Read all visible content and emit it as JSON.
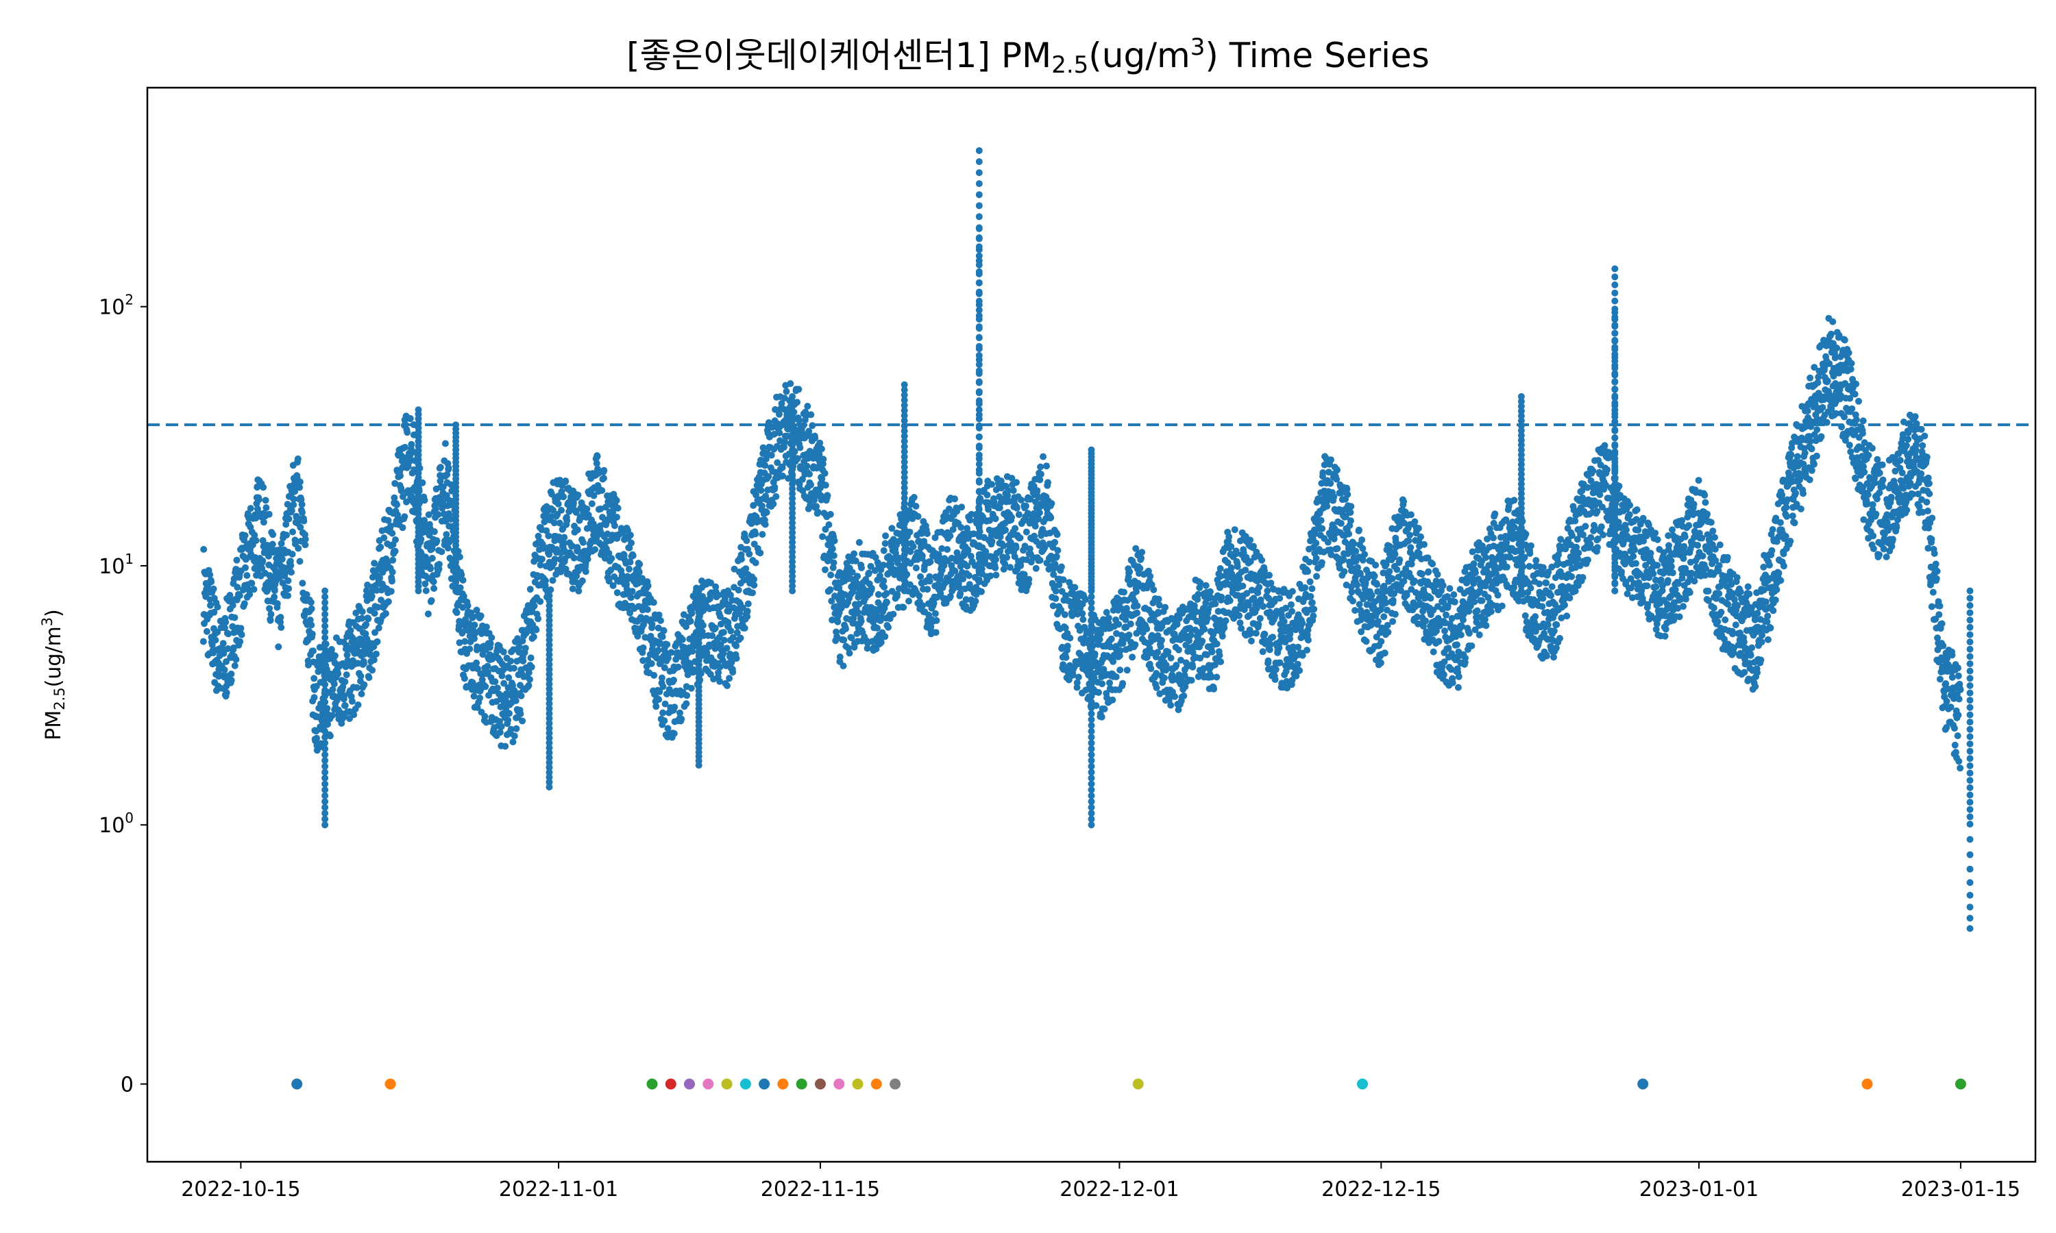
{
  "chart_data": {
    "type": "scatter",
    "title": {
      "prefix": "[좋은이웃데이케어센터1] PM",
      "sub": "2.5",
      "mid": "(ug/m",
      "sup": "3",
      "suffix": ") Time Series"
    },
    "ylabel": {
      "prefix": "PM",
      "sub": "2.5",
      "mid": "(ug/m",
      "sup": "3",
      "suffix": ")"
    },
    "xlabel": "",
    "xlim": [
      "2022-10-10",
      "2023-01-19"
    ],
    "x_ticks": [
      "2022-10-15",
      "2022-11-01",
      "2022-11-15",
      "2022-12-01",
      "2022-12-15",
      "2023-01-01",
      "2023-01-15"
    ],
    "y_scale": "symlog",
    "ylim": [
      -0.3,
      700
    ],
    "y_ticks": [
      {
        "value": 0,
        "base": "0",
        "exp": ""
      },
      {
        "value": 1,
        "base": "10",
        "exp": "0"
      },
      {
        "value": 10,
        "base": "10",
        "exp": "1"
      },
      {
        "value": 100,
        "base": "10",
        "exp": "2"
      }
    ],
    "threshold": {
      "value": 35,
      "style": "dashed",
      "color": "#1f77b4"
    },
    "series_color": "#1f77b4",
    "main_series": [
      [
        "2022-10-13",
        8
      ],
      [
        "2022-10-14",
        4
      ],
      [
        "2022-10-15",
        8
      ],
      [
        "2022-10-16",
        15
      ],
      [
        "2022-10-17",
        7
      ],
      [
        "2022-10-18",
        20
      ],
      [
        "2022-10-19",
        3
      ],
      [
        "2022-10-20",
        3.5
      ],
      [
        "2022-10-21",
        4
      ],
      [
        "2022-10-22",
        6
      ],
      [
        "2022-10-23",
        12
      ],
      [
        "2022-10-24",
        30
      ],
      [
        "2022-10-25",
        10
      ],
      [
        "2022-10-26",
        20
      ],
      [
        "2022-10-27",
        5
      ],
      [
        "2022-10-28",
        4
      ],
      [
        "2022-10-29",
        3
      ],
      [
        "2022-10-30",
        3.5
      ],
      [
        "2022-10-31",
        10
      ],
      [
        "2022-11-01",
        15
      ],
      [
        "2022-11-02",
        12
      ],
      [
        "2022-11-03",
        18
      ],
      [
        "2022-11-04",
        12
      ],
      [
        "2022-11-05",
        8
      ],
      [
        "2022-11-06",
        5
      ],
      [
        "2022-11-07",
        3
      ],
      [
        "2022-11-08",
        5
      ],
      [
        "2022-11-09",
        6
      ],
      [
        "2022-11-10",
        5
      ],
      [
        "2022-11-11",
        9
      ],
      [
        "2022-11-12",
        20
      ],
      [
        "2022-11-13",
        35
      ],
      [
        "2022-11-14",
        30
      ],
      [
        "2022-11-15",
        20
      ],
      [
        "2022-11-16",
        6
      ],
      [
        "2022-11-17",
        8
      ],
      [
        "2022-11-18",
        7
      ],
      [
        "2022-11-19",
        10
      ],
      [
        "2022-11-20",
        12
      ],
      [
        "2022-11-21",
        8
      ],
      [
        "2022-11-22",
        12
      ],
      [
        "2022-11-23",
        10
      ],
      [
        "2022-11-24",
        14
      ],
      [
        "2022-11-25",
        15
      ],
      [
        "2022-11-26",
        12
      ],
      [
        "2022-11-27",
        18
      ],
      [
        "2022-11-28",
        6
      ],
      [
        "2022-11-29",
        5
      ],
      [
        "2022-11-30",
        4
      ],
      [
        "2022-12-01",
        5
      ],
      [
        "2022-12-02",
        8
      ],
      [
        "2022-12-03",
        5
      ],
      [
        "2022-12-04",
        4
      ],
      [
        "2022-12-05",
        6
      ],
      [
        "2022-12-06",
        5
      ],
      [
        "2022-12-07",
        10
      ],
      [
        "2022-12-08",
        8
      ],
      [
        "2022-12-09",
        6
      ],
      [
        "2022-12-10",
        5
      ],
      [
        "2022-12-11",
        7
      ],
      [
        "2022-12-12",
        18
      ],
      [
        "2022-12-13",
        14
      ],
      [
        "2022-12-14",
        8
      ],
      [
        "2022-12-15",
        6
      ],
      [
        "2022-12-16",
        12
      ],
      [
        "2022-12-17",
        9
      ],
      [
        "2022-12-18",
        6
      ],
      [
        "2022-12-19",
        5
      ],
      [
        "2022-12-20",
        8
      ],
      [
        "2022-12-21",
        10
      ],
      [
        "2022-12-22",
        12
      ],
      [
        "2022-12-23",
        8
      ],
      [
        "2022-12-24",
        6
      ],
      [
        "2022-12-25",
        10
      ],
      [
        "2022-12-26",
        15
      ],
      [
        "2022-12-27",
        20
      ],
      [
        "2022-12-28",
        12
      ],
      [
        "2022-12-29",
        10
      ],
      [
        "2022-12-30",
        8
      ],
      [
        "2022-12-31",
        10
      ],
      [
        "2023-01-01",
        15
      ],
      [
        "2023-01-02",
        8
      ],
      [
        "2023-01-03",
        6
      ],
      [
        "2023-01-04",
        5
      ],
      [
        "2023-01-05",
        10
      ],
      [
        "2023-01-06",
        20
      ],
      [
        "2023-01-07",
        35
      ],
      [
        "2023-01-08",
        60
      ],
      [
        "2023-01-09",
        45
      ],
      [
        "2023-01-10",
        20
      ],
      [
        "2023-01-11",
        15
      ],
      [
        "2023-01-12",
        25
      ],
      [
        "2023-01-13",
        25
      ],
      [
        "2023-01-14",
        4
      ],
      [
        "2023-01-15",
        2.5
      ]
    ],
    "spikes": [
      [
        "2022-10-19",
        1.0
      ],
      [
        "2022-10-24",
        40
      ],
      [
        "2022-10-26",
        35
      ],
      [
        "2022-10-31",
        1.4
      ],
      [
        "2022-11-08",
        1.7
      ],
      [
        "2022-11-13",
        45
      ],
      [
        "2022-11-19",
        50
      ],
      [
        "2022-11-23",
        400
      ],
      [
        "2022-11-23",
        200
      ],
      [
        "2022-11-29",
        1.0
      ],
      [
        "2022-11-29",
        28
      ],
      [
        "2022-12-22",
        45
      ],
      [
        "2022-12-27",
        140
      ],
      [
        "2022-12-27",
        95
      ],
      [
        "2023-01-15",
        0.6
      ]
    ],
    "zero_markers": [
      {
        "x": "2022-10-18",
        "color": "#1f77b4"
      },
      {
        "x": "2022-10-23",
        "color": "#ff7f0e"
      },
      {
        "x": "2022-11-06",
        "color": "#2ca02c"
      },
      {
        "x": "2022-11-07",
        "color": "#d62728"
      },
      {
        "x": "2022-11-08",
        "color": "#9467bd"
      },
      {
        "x": "2022-11-09",
        "color": "#e377c2"
      },
      {
        "x": "2022-11-10",
        "color": "#bcbd22"
      },
      {
        "x": "2022-11-11",
        "color": "#17becf"
      },
      {
        "x": "2022-11-12",
        "color": "#1f77b4"
      },
      {
        "x": "2022-11-13",
        "color": "#ff7f0e"
      },
      {
        "x": "2022-11-14",
        "color": "#2ca02c"
      },
      {
        "x": "2022-11-15",
        "color": "#8c564b"
      },
      {
        "x": "2022-11-16",
        "color": "#e377c2"
      },
      {
        "x": "2022-11-17",
        "color": "#bcbd22"
      },
      {
        "x": "2022-11-18",
        "color": "#ff7f0e"
      },
      {
        "x": "2022-11-19",
        "color": "#7f7f7f"
      },
      {
        "x": "2022-12-02",
        "color": "#bcbd22"
      },
      {
        "x": "2022-12-14",
        "color": "#17becf"
      },
      {
        "x": "2022-12-29",
        "color": "#1f77b4"
      },
      {
        "x": "2023-01-10",
        "color": "#ff7f0e"
      },
      {
        "x": "2023-01-15",
        "color": "#2ca02c"
      }
    ],
    "grid": false,
    "legend": "none"
  }
}
